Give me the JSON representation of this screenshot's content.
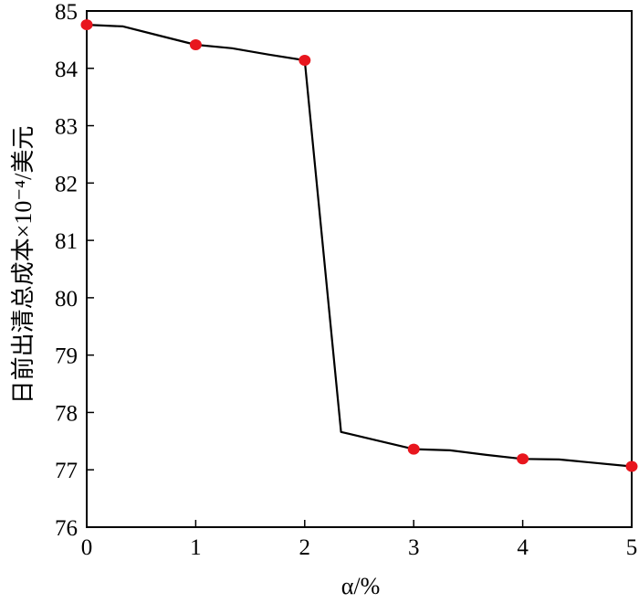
{
  "chart_data": {
    "type": "line",
    "title": "",
    "xlabel": "α/%",
    "ylabel": "日前出清总成本×10⁻⁴/美元",
    "xlim": [
      0,
      5
    ],
    "ylim": [
      76,
      85
    ],
    "x_ticks": [
      "0",
      "1",
      "2",
      "3",
      "4",
      "5"
    ],
    "y_ticks": [
      "76",
      "77",
      "78",
      "79",
      "80",
      "81",
      "82",
      "83",
      "84",
      "85"
    ],
    "grid": false,
    "legend": "none",
    "line_color": "#000000",
    "marker_color": "#e8161e",
    "series": [
      {
        "x": [
          0,
          0.333,
          0.667,
          1,
          1.333,
          1.667,
          2,
          2.333,
          2.667,
          3,
          3.333,
          3.667,
          4,
          4.333,
          4.667,
          5
        ],
        "values": [
          84.76,
          84.73,
          84.57,
          84.41,
          84.35,
          84.24,
          84.14,
          77.66,
          77.51,
          77.36,
          77.34,
          77.26,
          77.19,
          77.18,
          77.12,
          77.06
        ]
      }
    ],
    "markers": {
      "x": [
        0,
        1,
        2,
        3,
        4,
        5
      ],
      "values": [
        84.76,
        84.41,
        84.14,
        77.36,
        77.19,
        77.06
      ]
    }
  }
}
